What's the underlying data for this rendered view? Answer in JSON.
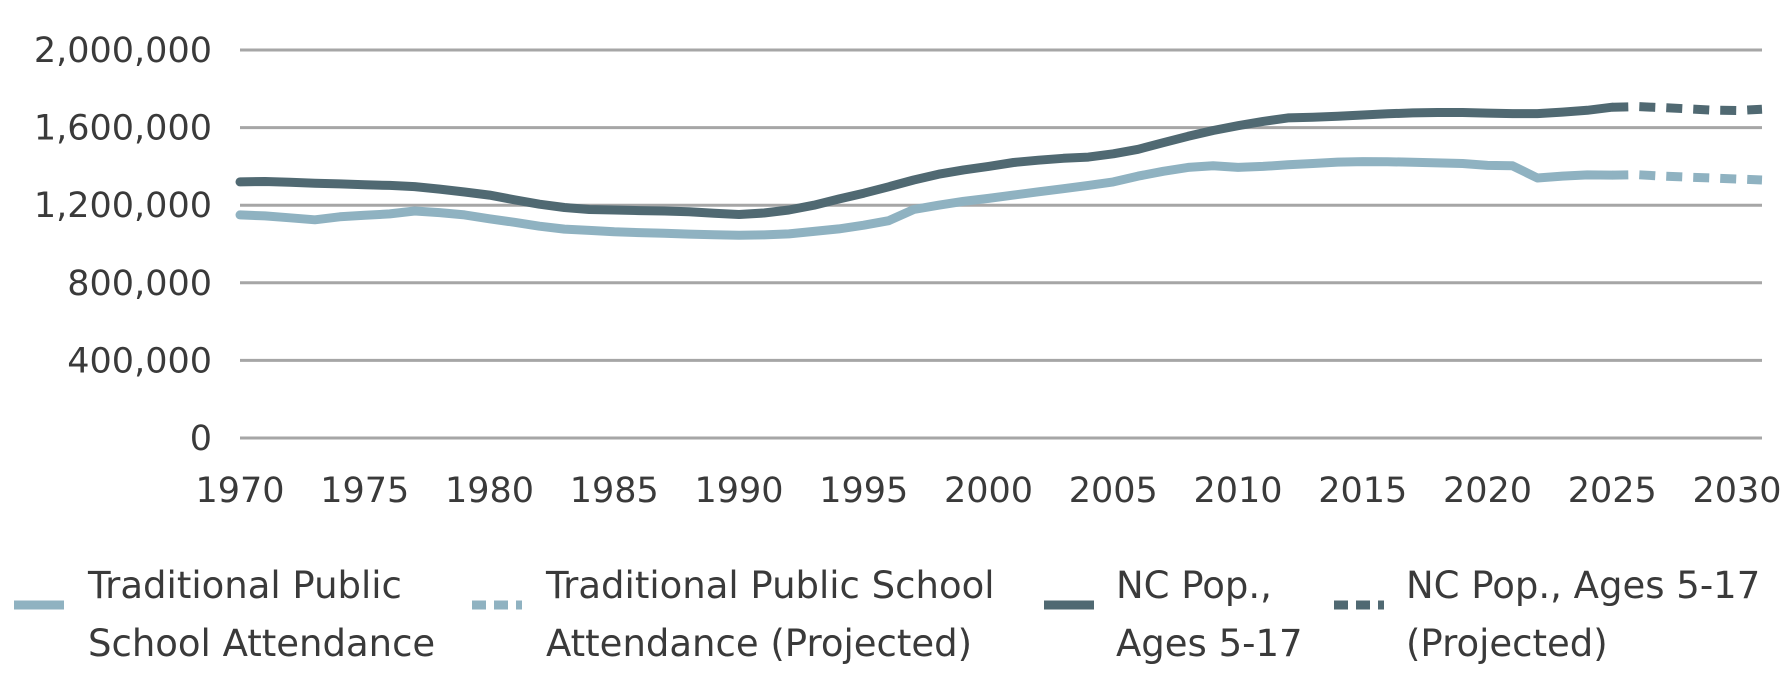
{
  "chart_data": {
    "type": "line",
    "title": "",
    "xlabel": "",
    "ylabel": "",
    "xlim": [
      1970,
      2031
    ],
    "ylim": [
      0,
      2000000
    ],
    "yticks": [
      0,
      400000,
      800000,
      1200000,
      1600000,
      2000000
    ],
    "ytick_labels": [
      "0",
      "400,000",
      "800,000",
      "1,200,000",
      "1,600,000",
      "2,000,000"
    ],
    "xticks": [
      1970,
      1975,
      1980,
      1985,
      1990,
      1995,
      2000,
      2005,
      2010,
      2015,
      2020,
      2025,
      2030
    ],
    "xtick_labels": [
      "1970",
      "1975",
      "1980",
      "1985",
      "1990",
      "1995",
      "2000",
      "2005",
      "2010",
      "2015",
      "2020",
      "2025",
      "2030"
    ],
    "grid": "horizontal",
    "legend_position": "bottom",
    "colors": {
      "attendance": "#8fb2c1",
      "population": "#506972",
      "grid": "#a6a6a6",
      "text": "#3a3a3a"
    },
    "series": [
      {
        "name": "Traditional Public School Attendance",
        "color": "#8fb2c1",
        "dashed": false,
        "x": [
          1970,
          1971,
          1972,
          1973,
          1974,
          1975,
          1976,
          1977,
          1978,
          1979,
          1980,
          1981,
          1982,
          1983,
          1984,
          1985,
          1986,
          1987,
          1988,
          1989,
          1990,
          1991,
          1992,
          1993,
          1994,
          1995,
          1996,
          1997,
          1998,
          1999,
          2000,
          2001,
          2002,
          2003,
          2004,
          2005,
          2006,
          2007,
          2008,
          2009,
          2010,
          2011,
          2012,
          2013,
          2014,
          2015,
          2016,
          2017,
          2018,
          2019,
          2020,
          2021,
          2022,
          2023,
          2024,
          2025
        ],
        "y": [
          1150000,
          1145000,
          1135000,
          1125000,
          1140000,
          1148000,
          1155000,
          1170000,
          1162000,
          1150000,
          1130000,
          1112000,
          1092000,
          1077000,
          1070000,
          1063000,
          1059000,
          1055000,
          1051000,
          1048000,
          1045000,
          1047000,
          1052000,
          1065000,
          1078000,
          1097000,
          1120000,
          1178000,
          1200000,
          1220000,
          1235000,
          1252000,
          1269000,
          1285000,
          1302000,
          1320000,
          1350000,
          1375000,
          1395000,
          1403000,
          1395000,
          1400000,
          1408000,
          1415000,
          1422000,
          1425000,
          1424000,
          1421000,
          1418000,
          1415000,
          1405000,
          1403000,
          1340000,
          1350000,
          1356000,
          1355000
        ]
      },
      {
        "name": "Traditional Public School Attendance (Projected)",
        "color": "#8fb2c1",
        "dashed": true,
        "x": [
          2025,
          2026,
          2027,
          2028,
          2029,
          2030,
          2031
        ],
        "y": [
          1355000,
          1357000,
          1350000,
          1345000,
          1340000,
          1335000,
          1330000
        ]
      },
      {
        "name": "NC Pop., Ages 5-17",
        "color": "#506972",
        "dashed": false,
        "x": [
          1970,
          1971,
          1972,
          1973,
          1974,
          1975,
          1976,
          1977,
          1978,
          1979,
          1980,
          1981,
          1982,
          1983,
          1984,
          1985,
          1986,
          1987,
          1988,
          1989,
          1990,
          1991,
          1992,
          1993,
          1994,
          1995,
          1996,
          1997,
          1998,
          1999,
          2000,
          2001,
          2002,
          2003,
          2004,
          2005,
          2006,
          2007,
          2008,
          2009,
          2010,
          2011,
          2012,
          2013,
          2014,
          2015,
          2016,
          2017,
          2018,
          2019,
          2020,
          2021,
          2022,
          2023,
          2024,
          2025
        ],
        "y": [
          1320000,
          1322000,
          1318000,
          1313000,
          1310000,
          1305000,
          1302000,
          1296000,
          1283000,
          1268000,
          1252000,
          1228000,
          1205000,
          1188000,
          1178000,
          1175000,
          1172000,
          1170000,
          1166000,
          1158000,
          1152000,
          1160000,
          1175000,
          1200000,
          1232000,
          1262000,
          1295000,
          1330000,
          1360000,
          1382000,
          1400000,
          1420000,
          1432000,
          1442000,
          1448000,
          1465000,
          1488000,
          1522000,
          1555000,
          1585000,
          1610000,
          1632000,
          1650000,
          1653000,
          1659000,
          1665000,
          1671000,
          1676000,
          1678000,
          1678000,
          1675000,
          1672000,
          1672000,
          1680000,
          1689000,
          1705000
        ]
      },
      {
        "name": "NC Pop., Ages 5-17 (Projected)",
        "color": "#506972",
        "dashed": true,
        "x": [
          2025,
          2026,
          2027,
          2028,
          2029,
          2030,
          2031
        ],
        "y": [
          1705000,
          1708000,
          1703000,
          1697000,
          1690000,
          1688000,
          1695000
        ]
      }
    ],
    "legend": [
      {
        "line1": "Traditional Public",
        "line2": "School Attendance",
        "color": "#8fb2c1",
        "dashed": false
      },
      {
        "line1": "Traditional Public School",
        "line2": "Attendance (Projected)",
        "color": "#8fb2c1",
        "dashed": true
      },
      {
        "line1": "NC Pop.,",
        "line2": "Ages 5-17",
        "color": "#506972",
        "dashed": false
      },
      {
        "line1": "NC Pop., Ages 5-17",
        "line2": "(Projected)",
        "color": "#506972",
        "dashed": true
      }
    ]
  }
}
